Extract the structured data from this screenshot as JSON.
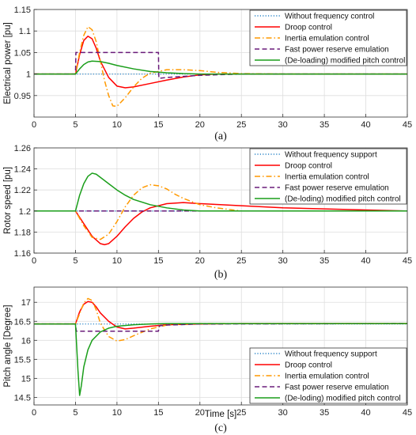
{
  "chart_data": [
    {
      "type": "line",
      "caption": "(a)",
      "xlabel": "",
      "ylabel": "Electrical power [pu]",
      "xlim": [
        0,
        45
      ],
      "ylim": [
        0.9,
        1.15
      ],
      "xticks": [
        0,
        5,
        10,
        15,
        20,
        25,
        30,
        35,
        40,
        45
      ],
      "yticks": [
        0.95,
        1,
        1.05,
        1.1,
        1.15
      ],
      "ytick_labels": [
        "0.95",
        "1",
        "1.05",
        "1.1",
        "1.15"
      ],
      "grid": true,
      "legend_position": "top-right",
      "series": [
        {
          "name": "Without frequency control",
          "color": "#2b86c9",
          "dash": "dotted",
          "x": [
            0,
            45
          ],
          "y": [
            1.0,
            1.0
          ]
        },
        {
          "name": "Droop  control",
          "color": "#ff0000",
          "dash": "solid",
          "x": [
            0,
            5,
            5.5,
            6,
            6.5,
            7,
            7.5,
            8,
            9,
            10,
            11,
            12,
            14,
            16,
            18,
            20,
            22,
            25,
            30,
            45
          ],
          "y": [
            1.0,
            1.0,
            1.045,
            1.078,
            1.088,
            1.082,
            1.06,
            1.03,
            0.992,
            0.972,
            0.968,
            0.97,
            0.978,
            0.986,
            0.993,
            0.998,
            1.0,
            1.0,
            1.0,
            1.0
          ]
        },
        {
          "name": "Inertia emulation control",
          "color": "#ff9900",
          "dash": "dashdot",
          "x": [
            0,
            5,
            5.5,
            6,
            6.5,
            7,
            7.5,
            8,
            8.5,
            9,
            9.5,
            10,
            11,
            12,
            13,
            14,
            16,
            18,
            20,
            22,
            25,
            30,
            45
          ],
          "y": [
            1.0,
            1.0,
            1.05,
            1.09,
            1.11,
            1.103,
            1.075,
            1.03,
            0.985,
            0.95,
            0.926,
            0.925,
            0.945,
            0.97,
            0.99,
            1.002,
            1.01,
            1.01,
            1.008,
            1.004,
            1.001,
            1.0,
            1.0
          ]
        },
        {
          "name": "Fast power reserve emulation",
          "color": "#6a1b7a",
          "dash": "dashed",
          "x": [
            0,
            5,
            5.05,
            15,
            15.05,
            16,
            20,
            25,
            45
          ],
          "y": [
            1.0,
            1.0,
            1.05,
            1.05,
            0.99,
            0.992,
            0.997,
            1.0,
            1.0
          ]
        },
        {
          "name": "(De-loading) modified pitch control",
          "color": "#1a9e1a",
          "dash": "solid",
          "x": [
            0,
            5,
            5.5,
            6,
            6.5,
            7,
            8,
            9,
            10,
            12,
            14,
            16,
            18,
            20,
            25,
            45
          ],
          "y": [
            1.0,
            1.0,
            1.012,
            1.022,
            1.028,
            1.03,
            1.029,
            1.025,
            1.02,
            1.012,
            1.006,
            1.003,
            1.001,
            1.0,
            1.0,
            1.0
          ]
        }
      ]
    },
    {
      "type": "line",
      "caption": "(b)",
      "xlabel": "",
      "ylabel": "Rotor speed [pu]",
      "xlim": [
        0,
        45
      ],
      "ylim": [
        1.16,
        1.26
      ],
      "xticks": [
        0,
        5,
        10,
        15,
        20,
        25,
        30,
        35,
        40,
        45
      ],
      "yticks": [
        1.16,
        1.18,
        1.2,
        1.22,
        1.24,
        1.26
      ],
      "ytick_labels": [
        "1.16",
        "1.18",
        "1.2",
        "1.22",
        "1.24",
        "1.26"
      ],
      "grid": true,
      "legend_position": "top-right",
      "series": [
        {
          "name": "Without frequency support",
          "color": "#2b86c9",
          "dash": "dotted",
          "x": [
            0,
            45
          ],
          "y": [
            1.2,
            1.2
          ]
        },
        {
          "name": "Droop  control",
          "color": "#ff0000",
          "dash": "solid",
          "x": [
            0,
            5,
            6,
            7,
            8,
            8.5,
            9,
            10,
            11,
            12,
            13,
            14,
            16,
            18,
            20,
            25,
            30,
            35,
            40,
            45
          ],
          "y": [
            1.2,
            1.2,
            1.188,
            1.176,
            1.169,
            1.168,
            1.169,
            1.176,
            1.185,
            1.193,
            1.199,
            1.203,
            1.207,
            1.208,
            1.207,
            1.205,
            1.203,
            1.202,
            1.201,
            1.2
          ]
        },
        {
          "name": "Inertia emulation control",
          "color": "#ff9900",
          "dash": "dashdot",
          "x": [
            0,
            5,
            6,
            7,
            8,
            9,
            10,
            11,
            12,
            13,
            14,
            15,
            16,
            17,
            18,
            20,
            22,
            25,
            30,
            35,
            40,
            45
          ],
          "y": [
            1.2,
            1.2,
            1.186,
            1.175,
            1.173,
            1.178,
            1.19,
            1.204,
            1.215,
            1.222,
            1.225,
            1.224,
            1.221,
            1.216,
            1.212,
            1.206,
            1.203,
            1.2,
            1.2,
            1.2,
            1.2,
            1.2
          ]
        },
        {
          "name": "Fast power reserve emulation",
          "color": "#6a1b7a",
          "dash": "dashed",
          "x": [
            0,
            45
          ],
          "y": [
            1.2,
            1.2
          ]
        },
        {
          "name": "(De-loding) modified pitch control",
          "color": "#1a9e1a",
          "dash": "solid",
          "x": [
            0,
            5,
            5.5,
            6,
            6.5,
            7,
            7.5,
            8,
            9,
            10,
            11,
            12,
            14,
            16,
            18,
            20,
            22,
            25,
            30,
            45
          ],
          "y": [
            1.2,
            1.2,
            1.215,
            1.226,
            1.233,
            1.236,
            1.235,
            1.232,
            1.226,
            1.22,
            1.215,
            1.211,
            1.206,
            1.203,
            1.201,
            1.2,
            1.2,
            1.2,
            1.2,
            1.2
          ]
        }
      ]
    },
    {
      "type": "line",
      "caption": "(c)",
      "xlabel": "Time [s]",
      "ylabel": "Pitch angle [Degree]",
      "xlim": [
        0,
        45
      ],
      "ylim": [
        14.3,
        17.4
      ],
      "xticks": [
        0,
        5,
        10,
        15,
        20,
        25,
        30,
        35,
        40,
        45
      ],
      "yticks": [
        14.5,
        15,
        15.5,
        16,
        16.5,
        17
      ],
      "ytick_labels": [
        "14.5",
        "15",
        "15.5",
        "16",
        "16.5",
        "17"
      ],
      "grid": true,
      "legend_position": "bottom-right",
      "series": [
        {
          "name": "Without frequency support",
          "color": "#2b86c9",
          "dash": "dotted",
          "x": [
            0,
            45
          ],
          "y": [
            16.43,
            16.43
          ]
        },
        {
          "name": "Droop  control",
          "color": "#ff0000",
          "dash": "solid",
          "x": [
            0,
            5,
            5.5,
            6,
            6.5,
            7,
            7.5,
            8,
            9,
            10,
            11,
            12,
            14,
            16,
            20,
            25,
            45
          ],
          "y": [
            16.43,
            16.43,
            16.75,
            16.95,
            17.02,
            17.0,
            16.88,
            16.72,
            16.5,
            16.35,
            16.3,
            16.32,
            16.37,
            16.41,
            16.43,
            16.44,
            16.44
          ]
        },
        {
          "name": "Inertia emulation control",
          "color": "#ff9900",
          "dash": "dashdot",
          "x": [
            0,
            5,
            5.5,
            6,
            6.5,
            7,
            7.5,
            8,
            9,
            10,
            11,
            12,
            14,
            16,
            18,
            20,
            25,
            45
          ],
          "y": [
            16.43,
            16.43,
            16.7,
            16.98,
            17.1,
            17.05,
            16.8,
            16.45,
            16.1,
            15.98,
            16.02,
            16.12,
            16.3,
            16.4,
            16.43,
            16.44,
            16.44,
            16.44
          ]
        },
        {
          "name": "Fast power reserve emulation",
          "color": "#6a1b7a",
          "dash": "dashed",
          "x": [
            0,
            5,
            5.1,
            15,
            15.1,
            16,
            20,
            45
          ],
          "y": [
            16.43,
            16.43,
            16.24,
            16.24,
            16.38,
            16.4,
            16.43,
            16.44
          ]
        },
        {
          "name": "(De-loding) modified pitch control",
          "color": "#1a9e1a",
          "dash": "solid",
          "x": [
            0,
            5,
            5.3,
            5.5,
            5.7,
            6,
            6.5,
            7,
            8,
            9,
            10,
            12,
            14,
            16,
            18,
            20,
            25,
            45
          ],
          "y": [
            16.43,
            16.43,
            15.2,
            14.55,
            14.8,
            15.3,
            15.75,
            16.0,
            16.22,
            16.32,
            16.37,
            16.41,
            16.43,
            16.44,
            16.44,
            16.44,
            16.44,
            16.44
          ]
        }
      ]
    }
  ]
}
